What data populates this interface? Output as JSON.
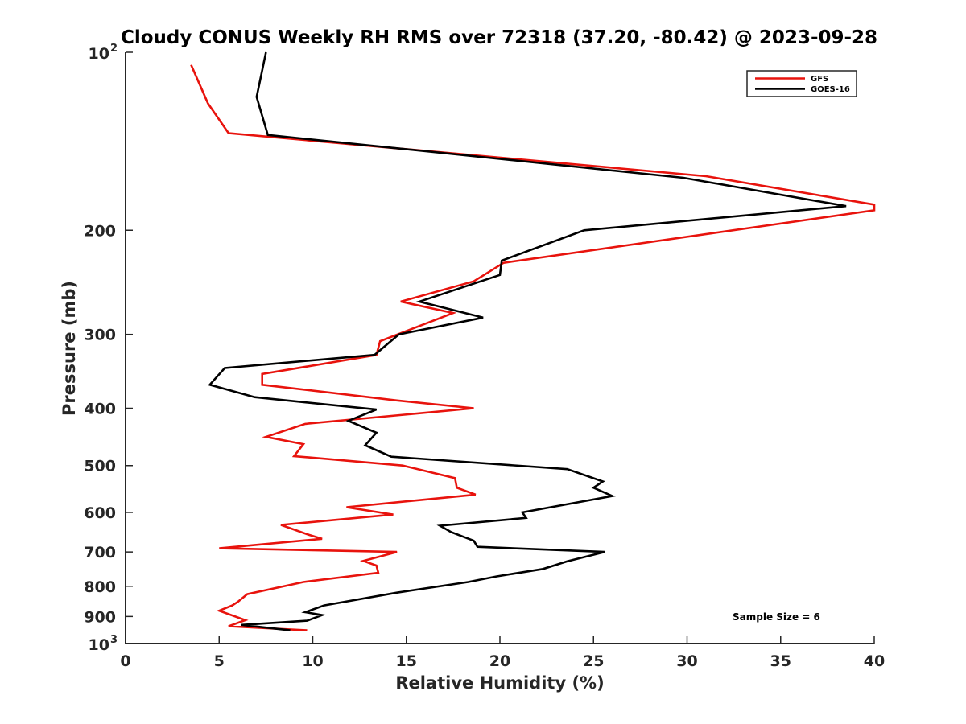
{
  "chart_data": {
    "type": "line",
    "title": "Cloudy CONUS Weekly RH RMS over 72318 (37.20, -80.42) @ 2023-09-28",
    "xlabel": "Relative Humidity (%)",
    "ylabel": "Pressure (mb)",
    "xlim": [
      0,
      40
    ],
    "ylim": [
      100,
      1000
    ],
    "yscale": "log",
    "yaxis_reversed": true,
    "grid": false,
    "legend_position": "top-right",
    "x_ticks": [
      "0",
      "5",
      "10",
      "15",
      "20",
      "25",
      "30",
      "35",
      "40"
    ],
    "y_ticks": [
      {
        "value": 100,
        "label": "10",
        "sup": "2"
      },
      {
        "value": 200,
        "label": "200"
      },
      {
        "value": 300,
        "label": "300"
      },
      {
        "value": 400,
        "label": "400"
      },
      {
        "value": 500,
        "label": "500"
      },
      {
        "value": 600,
        "label": "600"
      },
      {
        "value": 700,
        "label": "700"
      },
      {
        "value": 800,
        "label": "800"
      },
      {
        "value": 900,
        "label": "900"
      },
      {
        "value": 1000,
        "label": "10",
        "sup": "3"
      }
    ],
    "annotation": "Sample Size = 6",
    "series": [
      {
        "name": "GFS",
        "color": "#e8130d",
        "points": [
          [
            9.7,
            950
          ],
          [
            5.5,
            935
          ],
          [
            6.4,
            913
          ],
          [
            5.0,
            880
          ],
          [
            5.7,
            862
          ],
          [
            6.0,
            850
          ],
          [
            6.5,
            825
          ],
          [
            9.5,
            787
          ],
          [
            13.5,
            759
          ],
          [
            13.4,
            738
          ],
          [
            12.7,
            725
          ],
          [
            14.5,
            700
          ],
          [
            5.0,
            690
          ],
          [
            10.5,
            665
          ],
          [
            9.8,
            655
          ],
          [
            8.3,
            630
          ],
          [
            14.3,
            605
          ],
          [
            11.8,
            588
          ],
          [
            18.7,
            560
          ],
          [
            17.7,
            545
          ],
          [
            17.6,
            525
          ],
          [
            14.8,
            500
          ],
          [
            9.0,
            482
          ],
          [
            9.5,
            460
          ],
          [
            7.5,
            447
          ],
          [
            9.6,
            425
          ],
          [
            18.6,
            400
          ],
          [
            14.5,
            388
          ],
          [
            7.3,
            365
          ],
          [
            7.3,
            350
          ],
          [
            13.4,
            325
          ],
          [
            13.6,
            308
          ],
          [
            17.5,
            276
          ],
          [
            14.7,
            264
          ],
          [
            18.6,
            244
          ],
          [
            20.2,
            227
          ],
          [
            40.0,
            185
          ],
          [
            40.0,
            181
          ],
          [
            31.0,
            162
          ],
          [
            5.5,
            137
          ],
          [
            4.4,
            122
          ],
          [
            3.5,
            105
          ]
        ]
      },
      {
        "name": "GOES-16",
        "color": "#000000",
        "points": [
          [
            8.8,
            950
          ],
          [
            6.2,
            930
          ],
          [
            9.7,
            915
          ],
          [
            10.5,
            895
          ],
          [
            9.6,
            885
          ],
          [
            10.6,
            862
          ],
          [
            14.5,
            820
          ],
          [
            18.3,
            787
          ],
          [
            19.8,
            770
          ],
          [
            22.3,
            748
          ],
          [
            23.6,
            726
          ],
          [
            25.6,
            700
          ],
          [
            18.8,
            686
          ],
          [
            18.6,
            670
          ],
          [
            17.4,
            648
          ],
          [
            16.8,
            632
          ],
          [
            21.4,
            613
          ],
          [
            21.2,
            600
          ],
          [
            26.0,
            563
          ],
          [
            25.0,
            545
          ],
          [
            25.5,
            532
          ],
          [
            23.6,
            507
          ],
          [
            14.2,
            483
          ],
          [
            12.8,
            462
          ],
          [
            13.4,
            440
          ],
          [
            11.9,
            420
          ],
          [
            13.4,
            402
          ],
          [
            6.9,
            383
          ],
          [
            4.5,
            365
          ],
          [
            5.3,
            342
          ],
          [
            13.3,
            325
          ],
          [
            14.6,
            300
          ],
          [
            19.1,
            281
          ],
          [
            15.7,
            264
          ],
          [
            20.0,
            238
          ],
          [
            20.1,
            225
          ],
          [
            24.5,
            200
          ],
          [
            38.5,
            182
          ],
          [
            29.8,
            163
          ],
          [
            7.6,
            138
          ],
          [
            7.0,
            119
          ],
          [
            7.5,
            100
          ]
        ]
      }
    ]
  }
}
